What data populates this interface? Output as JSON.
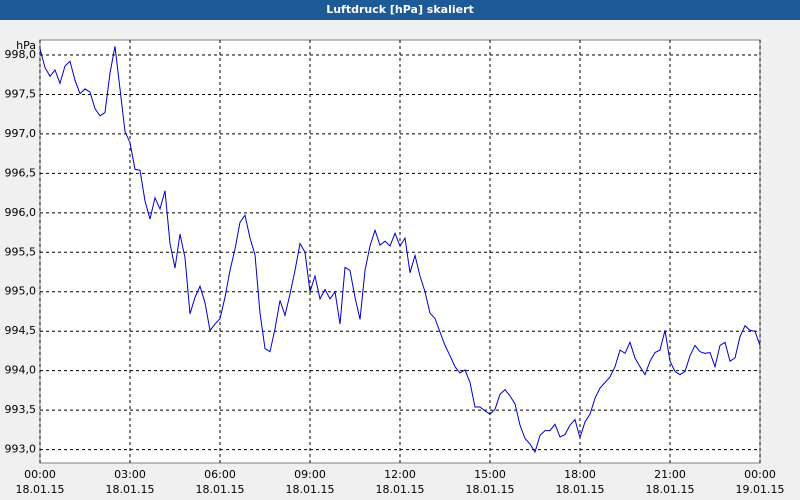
{
  "chart_data": {
    "type": "line",
    "title": "Luftdruck [hPa] skaliert",
    "y_unit": "hPa",
    "x": [
      0,
      10,
      20,
      30,
      40,
      50,
      60,
      70,
      80,
      90,
      100,
      110,
      120,
      130,
      140,
      150,
      160,
      170,
      180,
      190,
      200,
      210,
      220,
      230,
      240,
      250,
      260,
      270,
      280,
      290,
      300,
      310,
      320,
      330,
      340,
      350,
      360,
      370,
      380,
      390,
      400,
      410,
      420,
      430,
      440,
      450,
      460,
      470,
      480,
      490,
      500,
      510,
      520,
      530,
      540,
      550,
      560,
      570,
      580,
      590,
      600,
      610,
      620,
      630,
      640,
      650,
      660,
      670,
      680,
      690,
      700,
      710,
      720,
      730,
      740,
      750,
      760,
      770,
      780,
      790,
      800,
      810,
      820,
      830,
      840,
      850,
      860,
      870,
      880,
      890,
      900,
      910,
      920,
      930,
      940,
      950,
      960,
      970,
      980,
      990,
      1000,
      1010,
      1020,
      1030,
      1040,
      1050,
      1060,
      1070,
      1080,
      1090,
      1100,
      1110,
      1120,
      1130,
      1140,
      1150,
      1160,
      1170,
      1180,
      1190,
      1200,
      1210,
      1220,
      1230,
      1240,
      1250,
      1260,
      1270,
      1280,
      1290,
      1300,
      1310,
      1320,
      1330,
      1340,
      1350,
      1360,
      1370,
      1380,
      1390,
      1400,
      1410,
      1420,
      1430,
      1440
    ],
    "series": [
      {
        "name": "Luftdruck",
        "color": "#0000c8",
        "values": [
          998.08,
          997.84,
          997.73,
          997.81,
          997.64,
          997.86,
          997.92,
          997.68,
          997.51,
          997.57,
          997.53,
          997.32,
          997.23,
          997.27,
          997.77,
          998.11,
          997.57,
          997.03,
          996.89,
          996.55,
          996.54,
          996.15,
          995.92,
          996.19,
          996.05,
          996.28,
          995.61,
          995.3,
          995.73,
          995.43,
          994.72,
          994.93,
          995.07,
          994.86,
          994.51,
          994.59,
          994.66,
          994.93,
          995.27,
          995.54,
          995.88,
          995.97,
          995.68,
          995.47,
          994.73,
          994.28,
          994.24,
          994.53,
          994.89,
          994.7,
          994.97,
          995.27,
          995.61,
          995.5,
          995.0,
          995.2,
          994.91,
          995.03,
          994.91,
          995.0,
          994.59,
          995.31,
          995.27,
          994.93,
          994.65,
          995.27,
          995.58,
          995.78,
          995.59,
          995.64,
          995.58,
          995.74,
          995.58,
          995.68,
          995.24,
          995.46,
          995.2,
          995.0,
          994.73,
          994.66,
          994.49,
          994.32,
          994.19,
          994.05,
          993.97,
          994.01,
          993.85,
          993.54,
          993.54,
          993.49,
          993.45,
          993.51,
          993.7,
          993.76,
          993.68,
          993.58,
          993.31,
          993.14,
          993.07,
          992.97,
          993.18,
          993.24,
          993.24,
          993.32,
          993.16,
          993.19,
          993.31,
          993.38,
          993.15,
          993.35,
          993.45,
          993.65,
          993.78,
          993.85,
          993.92,
          994.05,
          994.26,
          994.22,
          994.36,
          994.16,
          994.05,
          993.95,
          994.12,
          994.23,
          994.26,
          994.51,
          994.12,
          993.99,
          993.95,
          993.99,
          994.19,
          994.32,
          994.24,
          994.22,
          994.23,
          994.05,
          994.32,
          994.36,
          994.12,
          994.16,
          994.43,
          994.57,
          994.51,
          994.5,
          994.32
        ]
      }
    ],
    "xlim": [
      0,
      1440
    ],
    "xticks": [
      {
        "value": 0,
        "label": "00:00",
        "date": "18.01.15"
      },
      {
        "value": 180,
        "label": "03:00",
        "date": "18.01.15"
      },
      {
        "value": 360,
        "label": "06:00",
        "date": "18.01.15"
      },
      {
        "value": 540,
        "label": "09:00",
        "date": "18.01.15"
      },
      {
        "value": 720,
        "label": "12:00",
        "date": "18.01.15"
      },
      {
        "value": 900,
        "label": "15:00",
        "date": "18.01.15"
      },
      {
        "value": 1080,
        "label": "18:00",
        "date": "18.01.15"
      },
      {
        "value": 1260,
        "label": "21:00",
        "date": "18.01.15"
      },
      {
        "value": 1440,
        "label": "00:00",
        "date": "19.01.15"
      }
    ],
    "ylim": [
      992.83,
      998.19
    ],
    "yticks": [
      {
        "value": 993,
        "label": "993,0"
      },
      {
        "value": 993.5,
        "label": "993,5"
      },
      {
        "value": 994,
        "label": "994,0"
      },
      {
        "value": 994.5,
        "label": "994,5"
      },
      {
        "value": 995,
        "label": "995,0"
      },
      {
        "value": 995.5,
        "label": "995,5"
      },
      {
        "value": 996,
        "label": "996,0"
      },
      {
        "value": 996.5,
        "label": "996,5"
      },
      {
        "value": 997,
        "label": "997,0"
      },
      {
        "value": 997.5,
        "label": "997,5"
      },
      {
        "value": 998,
        "label": "998,0"
      }
    ],
    "grid": true
  }
}
